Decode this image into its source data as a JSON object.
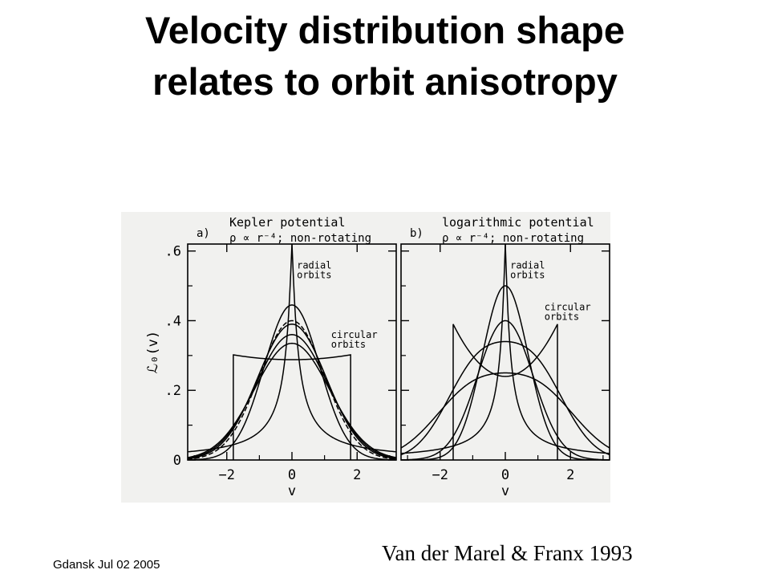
{
  "slide": {
    "title_line1": "Velocity distribution shape",
    "title_line2": "relates to orbit anisotropy",
    "credit": "Van der Marel & Franx 1993",
    "footer": "Gdansk Jul 02 2005"
  },
  "chart_data": [
    {
      "type": "line",
      "panel_label": "a)",
      "title": "Kepler potential",
      "subtitle": "ρ ∝ r⁻⁴; non-rotating",
      "xlabel": "v",
      "ylabel": "ℒ₀(v)",
      "xlim": [
        -3.2,
        3.2
      ],
      "ylim": [
        0,
        0.62
      ],
      "xticks": [
        -2,
        0,
        2
      ],
      "xtick_labels": [
        "−2",
        "0",
        "2"
      ],
      "yticks": [
        0,
        0.2,
        0.4,
        0.6
      ],
      "ytick_labels": [
        "0",
        ".2",
        ".4",
        ".6"
      ],
      "annotations": [
        {
          "text": "radial\norbits",
          "x": 0.15,
          "y": 0.55
        },
        {
          "text": "circular\norbits",
          "x": 1.2,
          "y": 0.35
        }
      ],
      "series": [
        {
          "type": "peak",
          "peak": 0.62,
          "width": 0.55
        },
        {
          "type": "gauss",
          "peak": 0.445,
          "width": 0.85
        },
        {
          "type": "gauss",
          "peak": 0.4,
          "width": 1.0
        },
        {
          "type": "gauss",
          "peak": 0.39,
          "width": 1.05
        },
        {
          "type": "gauss",
          "peak": 0.36,
          "width": 1.1
        },
        {
          "type": "gauss",
          "peak": 0.335,
          "width": 1.15
        },
        {
          "type": "box",
          "xmin": -1.8,
          "xmax": 1.8,
          "edge": 0.302,
          "center": 0.288
        }
      ]
    },
    {
      "type": "line",
      "panel_label": "b)",
      "title": "logarithmic potential",
      "subtitle": "ρ ∝ r⁻⁴; non-rotating",
      "xlabel": "v",
      "ylabel": "",
      "xlim": [
        -3.2,
        3.2
      ],
      "ylim": [
        0,
        0.62
      ],
      "xticks": [
        -2,
        0,
        2
      ],
      "xtick_labels": [
        "−2",
        "0",
        "2"
      ],
      "yticks": [
        0,
        0.2,
        0.4,
        0.6
      ],
      "ytick_labels": [],
      "annotations": [
        {
          "text": "radial\norbits",
          "x": 0.15,
          "y": 0.55
        },
        {
          "text": "circular\norbits",
          "x": 1.2,
          "y": 0.43
        }
      ],
      "series": [
        {
          "type": "peak",
          "peak": 0.62,
          "width": 0.45
        },
        {
          "type": "gauss",
          "peak": 0.5,
          "width": 0.7
        },
        {
          "type": "gauss",
          "peak": 0.4,
          "width": 0.85
        },
        {
          "type": "double",
          "peak": 0.34,
          "width": 1.0
        },
        {
          "type": "double",
          "peak": 0.25,
          "width": 1.2
        },
        {
          "type": "box",
          "xmin": -1.6,
          "xmax": 1.6,
          "edge": 0.39,
          "center": 0.24
        }
      ]
    }
  ]
}
